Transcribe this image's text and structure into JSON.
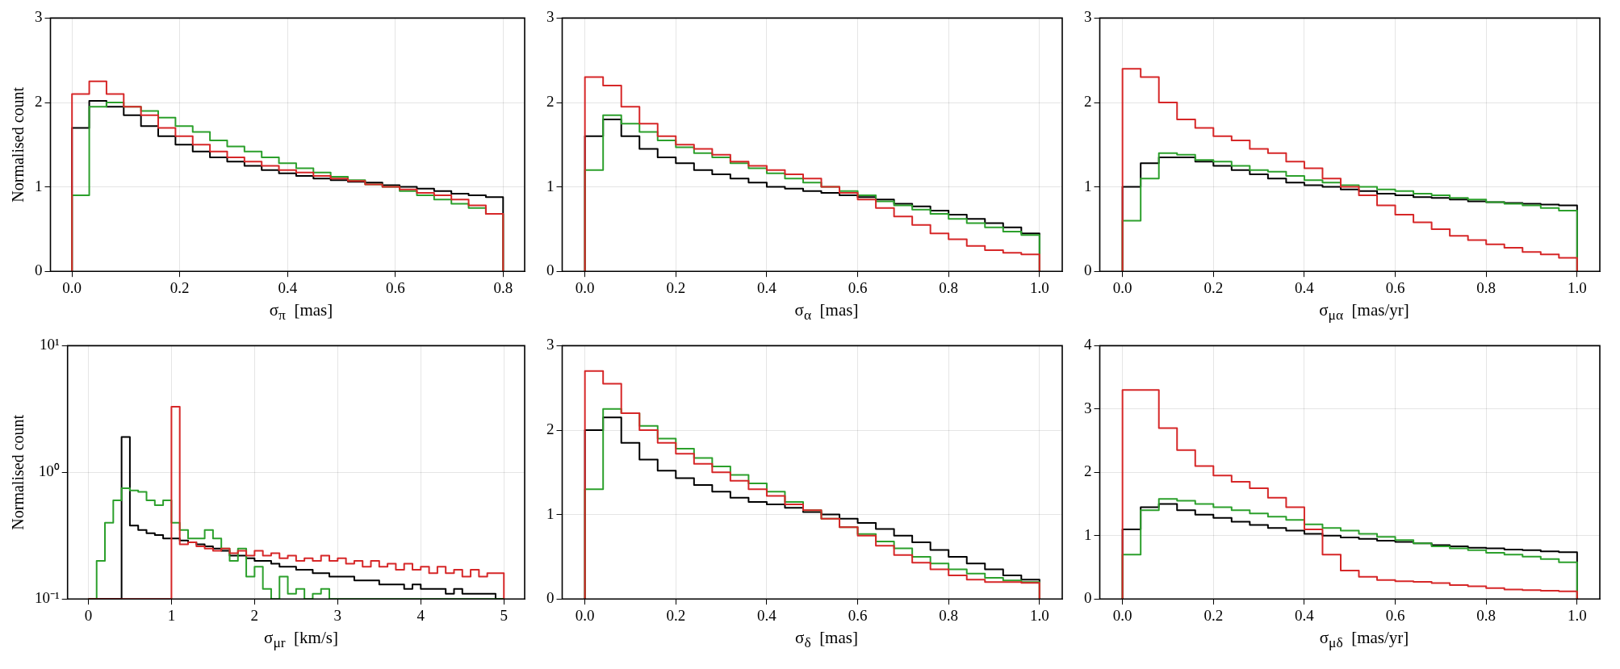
{
  "chart_data": [
    {
      "type": "histogram",
      "ylabel": "Normalised count",
      "xlabel": "σ$_{π}$  [mas]",
      "grid": true,
      "xlim": [
        -0.04,
        0.84
      ],
      "xticks": [
        {
          "value": 0,
          "label": "0.0"
        },
        {
          "value": 0.2,
          "label": "0.2"
        },
        {
          "value": 0.4,
          "label": "0.4"
        },
        {
          "value": 0.6,
          "label": "0.6"
        },
        {
          "value": 0.8,
          "label": "0.8"
        }
      ],
      "ylim": [
        0,
        3
      ],
      "yticks": [
        0,
        1,
        2,
        3
      ],
      "bins": [
        0,
        0.032,
        0.064,
        0.096,
        0.128,
        0.16,
        0.192,
        0.224,
        0.256,
        0.288,
        0.32,
        0.352,
        0.384,
        0.416,
        0.448,
        0.48,
        0.512,
        0.544,
        0.576,
        0.608,
        0.64,
        0.672,
        0.704,
        0.736,
        0.768,
        0.8
      ],
      "series": [
        {
          "color": "#d62728",
          "values": [
            2.1,
            2.25,
            2.1,
            1.95,
            1.85,
            1.7,
            1.6,
            1.5,
            1.42,
            1.35,
            1.3,
            1.25,
            1.2,
            1.17,
            1.13,
            1.1,
            1.07,
            1.03,
            1.0,
            0.97,
            0.93,
            0.9,
            0.85,
            0.78,
            0.68
          ]
        },
        {
          "color": "#2ca02c",
          "values": [
            0.9,
            1.95,
            2.0,
            1.95,
            1.9,
            1.82,
            1.72,
            1.65,
            1.55,
            1.48,
            1.42,
            1.35,
            1.28,
            1.22,
            1.17,
            1.12,
            1.08,
            1.03,
            1.0,
            0.95,
            0.9,
            0.85,
            0.8,
            0.75,
            0.68
          ]
        },
        {
          "color": "#000000",
          "values": [
            1.7,
            2.02,
            1.95,
            1.85,
            1.72,
            1.6,
            1.5,
            1.42,
            1.35,
            1.3,
            1.25,
            1.2,
            1.16,
            1.13,
            1.1,
            1.08,
            1.06,
            1.05,
            1.02,
            1.0,
            0.98,
            0.95,
            0.92,
            0.9,
            0.88
          ]
        }
      ]
    },
    {
      "type": "histogram",
      "xlabel": "σ$_{α}$  [mas]",
      "grid": true,
      "xlim": [
        -0.05,
        1.05
      ],
      "xticks": [
        {
          "value": 0,
          "label": "0.0"
        },
        {
          "value": 0.2,
          "label": "0.2"
        },
        {
          "value": 0.4,
          "label": "0.4"
        },
        {
          "value": 0.6,
          "label": "0.6"
        },
        {
          "value": 0.8,
          "label": "0.8"
        },
        {
          "value": 1,
          "label": "1.0"
        }
      ],
      "ylim": [
        0,
        3
      ],
      "yticks": [
        0,
        1,
        2,
        3
      ],
      "bins": [
        0,
        0.04,
        0.08,
        0.12,
        0.16,
        0.2,
        0.24,
        0.28,
        0.32,
        0.36,
        0.4,
        0.44,
        0.48,
        0.52,
        0.56,
        0.6,
        0.64,
        0.68,
        0.72,
        0.76,
        0.8,
        0.84,
        0.88,
        0.92,
        0.96,
        1.0
      ],
      "series": [
        {
          "color": "#d62728",
          "values": [
            2.3,
            2.2,
            1.95,
            1.75,
            1.6,
            1.5,
            1.45,
            1.38,
            1.3,
            1.25,
            1.2,
            1.15,
            1.1,
            1.0,
            0.93,
            0.85,
            0.75,
            0.65,
            0.55,
            0.45,
            0.38,
            0.3,
            0.25,
            0.22,
            0.2
          ]
        },
        {
          "color": "#2ca02c",
          "values": [
            1.2,
            1.85,
            1.75,
            1.65,
            1.55,
            1.47,
            1.4,
            1.35,
            1.28,
            1.22,
            1.16,
            1.1,
            1.05,
            1.0,
            0.95,
            0.9,
            0.83,
            0.78,
            0.73,
            0.68,
            0.62,
            0.57,
            0.52,
            0.47,
            0.43
          ]
        },
        {
          "color": "#000000",
          "values": [
            1.6,
            1.8,
            1.6,
            1.45,
            1.35,
            1.28,
            1.2,
            1.15,
            1.1,
            1.05,
            1.0,
            0.98,
            0.95,
            0.93,
            0.9,
            0.88,
            0.85,
            0.8,
            0.77,
            0.72,
            0.67,
            0.62,
            0.57,
            0.52,
            0.45
          ]
        }
      ]
    },
    {
      "type": "histogram",
      "xlabel": "σ$_{μα}$  [mas/yr]",
      "grid": true,
      "xlim": [
        -0.05,
        1.05
      ],
      "xticks": [
        {
          "value": 0,
          "label": "0.0"
        },
        {
          "value": 0.2,
          "label": "0.2"
        },
        {
          "value": 0.4,
          "label": "0.4"
        },
        {
          "value": 0.6,
          "label": "0.6"
        },
        {
          "value": 0.8,
          "label": "0.8"
        },
        {
          "value": 1,
          "label": "1.0"
        }
      ],
      "ylim": [
        0,
        3
      ],
      "yticks": [
        0,
        1,
        2,
        3
      ],
      "bins": [
        0,
        0.04,
        0.08,
        0.12,
        0.16,
        0.2,
        0.24,
        0.28,
        0.32,
        0.36,
        0.4,
        0.44,
        0.48,
        0.52,
        0.56,
        0.6,
        0.64,
        0.68,
        0.72,
        0.76,
        0.8,
        0.84,
        0.88,
        0.92,
        0.96,
        1.0
      ],
      "series": [
        {
          "color": "#d62728",
          "values": [
            2.4,
            2.3,
            2.0,
            1.8,
            1.7,
            1.6,
            1.55,
            1.45,
            1.4,
            1.3,
            1.22,
            1.1,
            1.0,
            0.9,
            0.78,
            0.67,
            0.58,
            0.5,
            0.42,
            0.37,
            0.32,
            0.28,
            0.23,
            0.2,
            0.16
          ]
        },
        {
          "color": "#2ca02c",
          "values": [
            0.6,
            1.1,
            1.4,
            1.38,
            1.32,
            1.3,
            1.25,
            1.2,
            1.18,
            1.13,
            1.08,
            1.05,
            1.02,
            1.0,
            0.97,
            0.95,
            0.92,
            0.9,
            0.87,
            0.85,
            0.82,
            0.8,
            0.78,
            0.75,
            0.72
          ]
        },
        {
          "color": "#000000",
          "values": [
            1.0,
            1.28,
            1.35,
            1.35,
            1.3,
            1.25,
            1.2,
            1.15,
            1.1,
            1.05,
            1.02,
            1.0,
            0.97,
            0.95,
            0.92,
            0.9,
            0.88,
            0.87,
            0.85,
            0.83,
            0.82,
            0.81,
            0.8,
            0.79,
            0.78
          ]
        }
      ]
    },
    {
      "type": "histogram",
      "ylabel": "Normalised count",
      "xlabel": "σ$_{μr}$  [km/s]",
      "grid": true,
      "log": "y",
      "xlim": [
        -0.25,
        5.25
      ],
      "xticks": [
        0,
        1,
        2,
        3,
        4,
        5
      ],
      "ylim": [
        0.1,
        10
      ],
      "yticks": [
        {
          "value": 0.1,
          "label": "10⁻¹"
        },
        {
          "value": 1,
          "label": "10⁰"
        },
        {
          "value": 10,
          "label": "10¹"
        }
      ],
      "bins": [
        0,
        0.1,
        0.2,
        0.3,
        0.4,
        0.5,
        0.6,
        0.7,
        0.8,
        0.9,
        1.0,
        1.1,
        1.2,
        1.3,
        1.4,
        1.5,
        1.6,
        1.7,
        1.8,
        1.9,
        2.0,
        2.1,
        2.2,
        2.3,
        2.4,
        2.5,
        2.6,
        2.7,
        2.8,
        2.9,
        3.0,
        3.1,
        3.2,
        3.3,
        3.4,
        3.5,
        3.6,
        3.7,
        3.8,
        3.9,
        4.0,
        4.1,
        4.2,
        4.3,
        4.4,
        4.5,
        4.6,
        4.7,
        4.8,
        4.9,
        5.0
      ],
      "series": [
        {
          "color": "#d62728",
          "values": [
            null,
            null,
            null,
            null,
            null,
            null,
            null,
            null,
            null,
            null,
            3.3,
            0.27,
            0.28,
            0.26,
            0.25,
            0.24,
            0.25,
            0.23,
            0.24,
            0.22,
            0.24,
            0.22,
            0.23,
            0.21,
            0.22,
            0.2,
            0.21,
            0.2,
            0.22,
            0.2,
            0.21,
            0.19,
            0.2,
            0.18,
            0.2,
            0.18,
            0.19,
            0.17,
            0.19,
            0.17,
            0.18,
            0.16,
            0.18,
            0.16,
            0.17,
            0.15,
            0.17,
            0.15,
            0.16,
            0.16
          ]
        },
        {
          "color": "#2ca02c",
          "values": [
            null,
            0.2,
            0.4,
            0.6,
            0.75,
            0.72,
            0.7,
            0.6,
            0.55,
            0.6,
            0.4,
            0.35,
            0.3,
            0.3,
            0.35,
            0.3,
            0.25,
            0.2,
            0.25,
            0.15,
            0.18,
            0.12,
            0.1,
            0.15,
            0.11,
            0.12,
            0.1,
            0.11,
            0.12,
            null,
            null,
            null,
            null,
            null,
            null,
            null,
            null,
            null,
            null,
            null,
            null,
            null,
            null,
            null,
            null,
            null,
            null,
            null,
            null,
            null
          ]
        },
        {
          "color": "#000000",
          "values": [
            null,
            null,
            null,
            null,
            1.9,
            0.38,
            0.35,
            0.33,
            0.32,
            0.3,
            0.3,
            0.29,
            0.28,
            0.27,
            0.26,
            0.25,
            0.24,
            0.22,
            0.22,
            0.21,
            0.2,
            0.2,
            0.19,
            0.18,
            0.18,
            0.17,
            0.17,
            0.16,
            0.16,
            0.15,
            0.15,
            0.15,
            0.14,
            0.14,
            0.14,
            0.13,
            0.13,
            0.13,
            0.12,
            0.13,
            0.12,
            0.12,
            0.12,
            0.11,
            0.12,
            0.11,
            0.11,
            0.11,
            0.11,
            0.1
          ]
        }
      ]
    },
    {
      "type": "histogram",
      "xlabel": "σ$_{δ}$  [mas]",
      "grid": true,
      "xlim": [
        -0.05,
        1.05
      ],
      "xticks": [
        {
          "value": 0,
          "label": "0.0"
        },
        {
          "value": 0.2,
          "label": "0.2"
        },
        {
          "value": 0.4,
          "label": "0.4"
        },
        {
          "value": 0.6,
          "label": "0.6"
        },
        {
          "value": 0.8,
          "label": "0.8"
        },
        {
          "value": 1,
          "label": "1.0"
        }
      ],
      "ylim": [
        0,
        3
      ],
      "yticks": [
        0,
        1,
        2,
        3
      ],
      "bins": [
        0,
        0.04,
        0.08,
        0.12,
        0.16,
        0.2,
        0.24,
        0.28,
        0.32,
        0.36,
        0.4,
        0.44,
        0.48,
        0.52,
        0.56,
        0.6,
        0.64,
        0.68,
        0.72,
        0.76,
        0.8,
        0.84,
        0.88,
        0.92,
        0.96,
        1.0
      ],
      "series": [
        {
          "color": "#d62728",
          "values": [
            2.7,
            2.55,
            2.2,
            2.0,
            1.85,
            1.72,
            1.6,
            1.5,
            1.4,
            1.3,
            1.22,
            1.12,
            1.05,
            0.95,
            0.85,
            0.75,
            0.63,
            0.52,
            0.43,
            0.35,
            0.28,
            0.23,
            0.2,
            0.2,
            0.19
          ]
        },
        {
          "color": "#2ca02c",
          "values": [
            1.3,
            2.25,
            2.2,
            2.05,
            1.9,
            1.78,
            1.67,
            1.57,
            1.47,
            1.37,
            1.27,
            1.15,
            1.05,
            0.95,
            0.85,
            0.77,
            0.68,
            0.6,
            0.5,
            0.42,
            0.35,
            0.3,
            0.25,
            0.22,
            0.2
          ]
        },
        {
          "color": "#000000",
          "values": [
            2.0,
            2.15,
            1.85,
            1.65,
            1.52,
            1.43,
            1.35,
            1.27,
            1.2,
            1.15,
            1.12,
            1.08,
            1.03,
            1.0,
            0.95,
            0.9,
            0.83,
            0.75,
            0.67,
            0.58,
            0.5,
            0.42,
            0.35,
            0.28,
            0.23
          ]
        }
      ]
    },
    {
      "type": "histogram",
      "xlabel": "σ$_{μδ}$  [mas/yr]",
      "grid": true,
      "xlim": [
        -0.05,
        1.05
      ],
      "xticks": [
        {
          "value": 0,
          "label": "0.0"
        },
        {
          "value": 0.2,
          "label": "0.2"
        },
        {
          "value": 0.4,
          "label": "0.4"
        },
        {
          "value": 0.6,
          "label": "0.6"
        },
        {
          "value": 0.8,
          "label": "0.8"
        },
        {
          "value": 1,
          "label": "1.0"
        }
      ],
      "ylim": [
        0,
        4
      ],
      "yticks": [
        0,
        1,
        2,
        3,
        4
      ],
      "bins": [
        0,
        0.04,
        0.08,
        0.12,
        0.16,
        0.2,
        0.24,
        0.28,
        0.32,
        0.36,
        0.4,
        0.44,
        0.48,
        0.52,
        0.56,
        0.6,
        0.64,
        0.68,
        0.72,
        0.76,
        0.8,
        0.84,
        0.88,
        0.92,
        0.96,
        1.0
      ],
      "series": [
        {
          "color": "#d62728",
          "values": [
            3.3,
            3.3,
            2.7,
            2.35,
            2.1,
            1.95,
            1.85,
            1.75,
            1.6,
            1.45,
            1.1,
            0.7,
            0.45,
            0.35,
            0.3,
            0.28,
            0.27,
            0.25,
            0.22,
            0.2,
            0.17,
            0.15,
            0.14,
            0.13,
            0.12
          ]
        },
        {
          "color": "#2ca02c",
          "values": [
            0.7,
            1.4,
            1.58,
            1.55,
            1.5,
            1.45,
            1.4,
            1.35,
            1.3,
            1.25,
            1.18,
            1.12,
            1.08,
            1.03,
            0.98,
            0.93,
            0.88,
            0.83,
            0.8,
            0.77,
            0.73,
            0.7,
            0.67,
            0.63,
            0.58
          ]
        },
        {
          "color": "#000000",
          "values": [
            1.1,
            1.45,
            1.5,
            1.4,
            1.33,
            1.28,
            1.22,
            1.17,
            1.12,
            1.08,
            1.03,
            1.0,
            0.97,
            0.95,
            0.92,
            0.9,
            0.88,
            0.85,
            0.83,
            0.81,
            0.8,
            0.78,
            0.77,
            0.75,
            0.74
          ]
        }
      ]
    }
  ]
}
